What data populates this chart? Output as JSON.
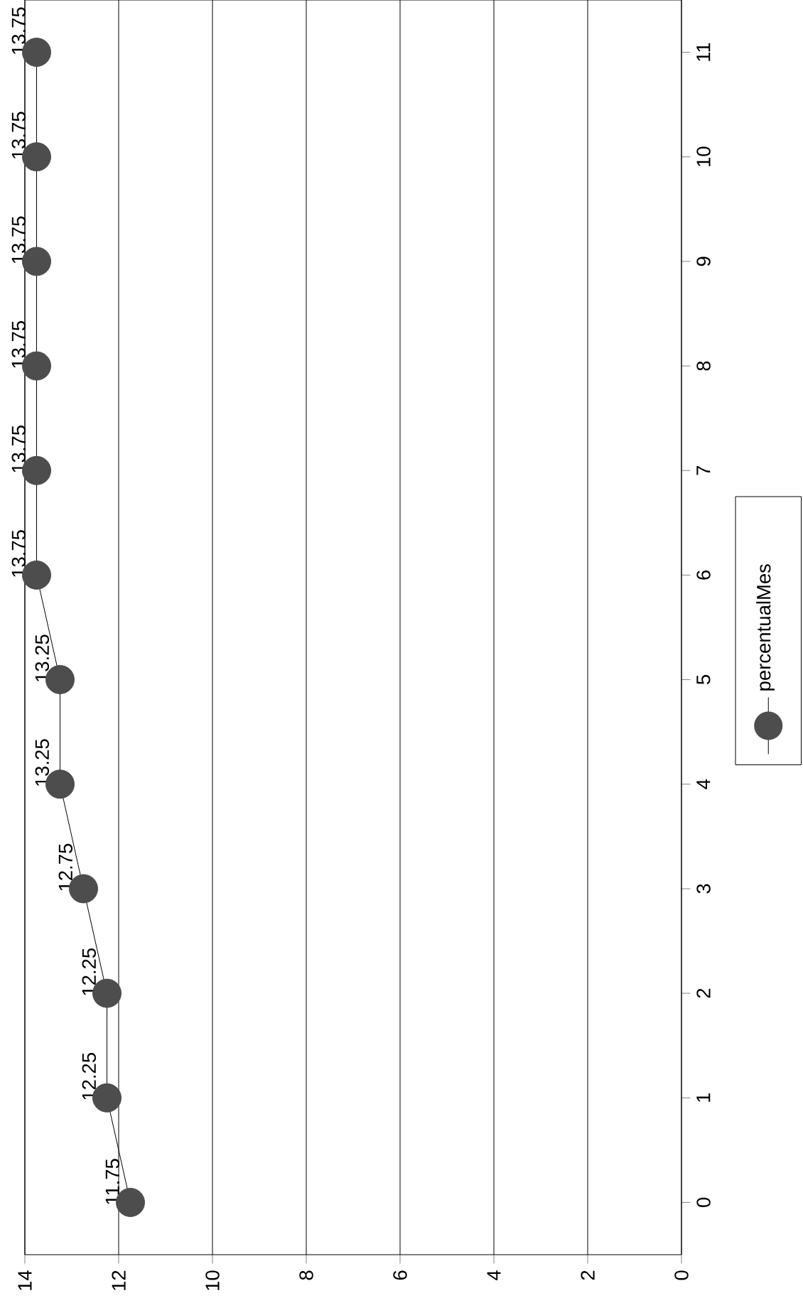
{
  "chart_data": {
    "type": "line",
    "orientation": "horizontal",
    "categories": [
      "11",
      "10",
      "9",
      "8",
      "7",
      "6",
      "5",
      "4",
      "3",
      "2",
      "1",
      "0"
    ],
    "series": [
      {
        "name": "percentualMes",
        "color": "#4d4d4d",
        "values": [
          13.75,
          13.75,
          13.75,
          13.75,
          13.75,
          13.75,
          13.25,
          13.25,
          12.75,
          12.25,
          12.25,
          11.75
        ]
      }
    ],
    "xlim": [
      14,
      0
    ],
    "xticks": [
      0,
      2,
      4,
      6,
      8,
      10,
      12,
      14
    ],
    "grid": "x",
    "legend": "right",
    "marker": "circle",
    "line_style": "solid",
    "data_labels": true
  }
}
